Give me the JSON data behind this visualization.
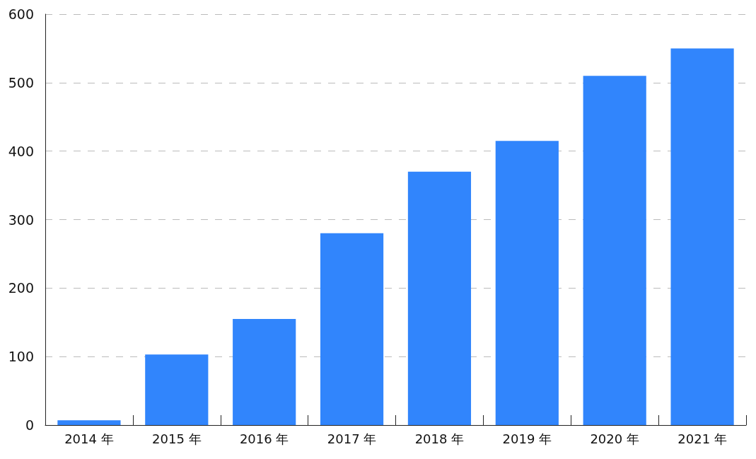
{
  "chart_data": {
    "type": "bar",
    "categories": [
      "2014 年",
      "2015 年",
      "2016 年",
      "2017 年",
      "2018 年",
      "2019 年",
      "2020 年",
      "2021 年"
    ],
    "values": [
      7,
      103,
      155,
      280,
      370,
      415,
      510,
      550
    ],
    "color": "#3185fc",
    "ylim": [
      0,
      600
    ],
    "yticks": [
      0,
      100,
      200,
      300,
      400,
      500,
      600
    ],
    "grid": "y"
  }
}
